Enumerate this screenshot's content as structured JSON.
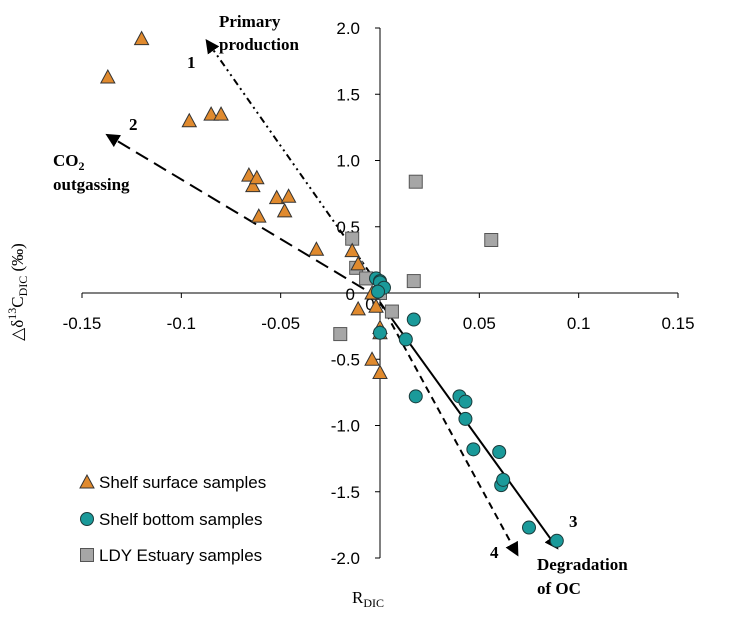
{
  "chart_data": {
    "type": "scatter",
    "xlabel": "R",
    "xlabel_sub": "DIC",
    "ylabel_prefix": "△δ",
    "ylabel_sup": "13",
    "ylabel_mid": "C",
    "ylabel_sub": "DIC",
    "ylabel_suffix": " (‰)",
    "xlim": [
      -0.15,
      0.15
    ],
    "ylim": [
      -2.0,
      2.0
    ],
    "xticks": [
      -0.15,
      -0.1,
      -0.05,
      0,
      0.05,
      0.1,
      0.15
    ],
    "xtick_labels": [
      "-0.15",
      "-0.1",
      "-0.05",
      "0",
      "0.05",
      "0.1",
      "0.15"
    ],
    "yticks": [
      2.0,
      1.5,
      1.0,
      0.5,
      0,
      -0.5,
      -1.0,
      -1.5,
      -2.0
    ],
    "ytick_labels": [
      "2.0",
      "1.5",
      "1.0",
      "0.5",
      "0",
      "-0.5",
      "-1.0",
      "-1.5",
      "-2.0"
    ],
    "grid": false,
    "legend_position": "bottom-left",
    "series": [
      {
        "name": "Shelf surface samples",
        "marker": "triangle",
        "color": "#E08A2E",
        "points": [
          [
            -0.12,
            1.92
          ],
          [
            -0.137,
            1.63
          ],
          [
            -0.096,
            1.3
          ],
          [
            -0.085,
            1.35
          ],
          [
            -0.08,
            1.35
          ],
          [
            -0.066,
            0.89
          ],
          [
            -0.064,
            0.81
          ],
          [
            -0.062,
            0.87
          ],
          [
            -0.061,
            0.58
          ],
          [
            -0.052,
            0.72
          ],
          [
            -0.048,
            0.62
          ],
          [
            -0.046,
            0.73
          ],
          [
            -0.032,
            0.33
          ],
          [
            -0.014,
            0.32
          ],
          [
            -0.011,
            0.22
          ],
          [
            -0.004,
            0.0
          ],
          [
            -0.002,
            -0.1
          ],
          [
            -0.011,
            -0.12
          ],
          [
            0.0,
            -0.26
          ],
          [
            0.0,
            -0.3
          ],
          [
            -0.004,
            -0.5
          ],
          [
            0.0,
            -0.6
          ]
        ]
      },
      {
        "name": "Shelf bottom samples",
        "marker": "circle",
        "color": "#1A9A9A",
        "points": [
          [
            -0.002,
            0.11
          ],
          [
            0.0,
            0.09
          ],
          [
            0.0,
            0.08
          ],
          [
            0.002,
            0.04
          ],
          [
            -0.001,
            0.01
          ],
          [
            0.0,
            -0.3
          ],
          [
            0.013,
            -0.35
          ],
          [
            0.017,
            -0.2
          ],
          [
            0.018,
            -0.78
          ],
          [
            0.04,
            -0.78
          ],
          [
            0.043,
            -0.82
          ],
          [
            0.043,
            -0.95
          ],
          [
            0.047,
            -1.18
          ],
          [
            0.06,
            -1.2
          ],
          [
            0.061,
            -1.45
          ],
          [
            0.062,
            -1.41
          ],
          [
            0.075,
            -1.77
          ],
          [
            0.089,
            -1.87
          ]
        ]
      },
      {
        "name": "LDY Estuary samples",
        "marker": "square",
        "color": "#A6A6A6",
        "points": [
          [
            -0.014,
            0.41
          ],
          [
            -0.02,
            -0.31
          ],
          [
            -0.012,
            0.19
          ],
          [
            -0.007,
            0.11
          ],
          [
            0.0,
            0.0
          ],
          [
            0.006,
            -0.14
          ],
          [
            0.018,
            0.84
          ],
          [
            0.017,
            0.09
          ],
          [
            0.056,
            0.4
          ]
        ]
      }
    ],
    "arrows": [
      {
        "label": "1",
        "style": "dash-dot-dot",
        "from": [
          -0.005,
          0.15
        ],
        "to": [
          -0.087,
          1.9
        ],
        "text": "Primary production"
      },
      {
        "label": "2",
        "style": "long-dash",
        "from": [
          -0.008,
          0.03
        ],
        "to": [
          -0.137,
          1.19
        ],
        "text_line1": "CO",
        "text_sub": "2",
        "text_line2": "outgassing"
      },
      {
        "label": "3",
        "style": "solid",
        "from": [
          0.0,
          -0.07
        ],
        "to": [
          0.089,
          -1.92
        ],
        "text": ""
      },
      {
        "label": "4",
        "style": "short-dash",
        "from": [
          0.0,
          -0.07
        ],
        "to": [
          0.069,
          -1.97
        ],
        "text": ""
      }
    ],
    "annotation_degradation_line1": "Degradation",
    "annotation_degradation_line2": "of OC"
  }
}
